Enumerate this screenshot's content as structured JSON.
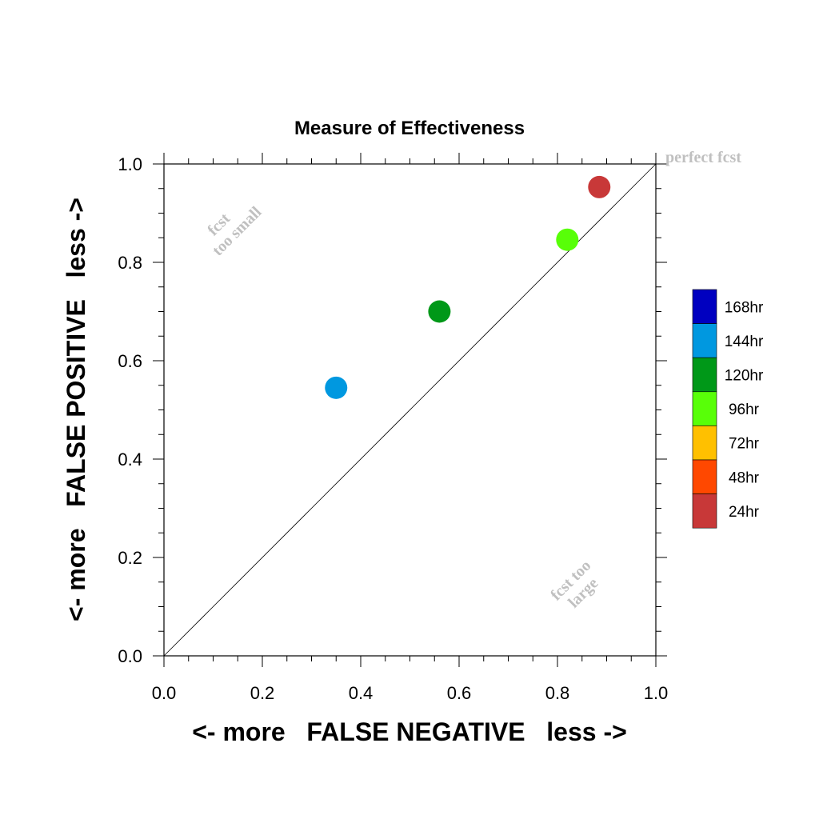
{
  "chart_data": {
    "type": "scatter",
    "title": "Measure of Effectiveness",
    "xlabel": "<- more   FALSE NEGATIVE   less ->",
    "ylabel": "<- more   FALSE POSITIVE   less ->",
    "xlim": [
      0.0,
      1.0
    ],
    "ylim": [
      0.0,
      1.0
    ],
    "x_ticks": [
      "0.0",
      "0.2",
      "0.4",
      "0.6",
      "0.8",
      "1.0"
    ],
    "y_ticks": [
      "0.0",
      "0.2",
      "0.4",
      "0.6",
      "0.8",
      "1.0"
    ],
    "grid": false,
    "reference_line": "diagonal y = x",
    "legend_position": "right",
    "legend": [
      {
        "label": "168hr",
        "color": "#0000c0"
      },
      {
        "label": "144hr",
        "color": "#0098e0"
      },
      {
        "label": "120hr",
        "color": "#009818"
      },
      {
        "label": "96hr",
        "color": "#58ff08"
      },
      {
        "label": "72hr",
        "color": "#ffc000"
      },
      {
        "label": "48hr",
        "color": "#ff4800"
      },
      {
        "label": "24hr",
        "color": "#c83838"
      }
    ],
    "points": [
      {
        "label": "144hr",
        "x": 0.35,
        "y": 0.545,
        "color": "#0098e0"
      },
      {
        "label": "120hr",
        "x": 0.56,
        "y": 0.7,
        "color": "#009818"
      },
      {
        "label": "96hr",
        "x": 0.82,
        "y": 0.846,
        "color": "#58ff08"
      },
      {
        "label": "24hr",
        "x": 0.885,
        "y": 0.953,
        "color": "#c83838"
      }
    ],
    "annotations": {
      "perfect": "perfect fcst",
      "too_small_1": "fcst",
      "too_small_2": "too small",
      "too_large_1": "fcst too",
      "too_large_2": "large"
    }
  }
}
